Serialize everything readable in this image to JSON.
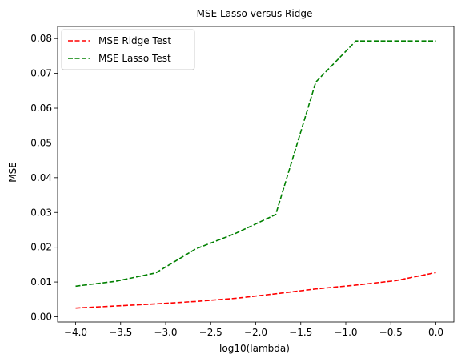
{
  "chart_data": {
    "type": "line",
    "title": "MSE Lasso versus Ridge",
    "xlabel": "log10(lambda)",
    "ylabel": "MSE",
    "xlim": [
      -4.2,
      0.2
    ],
    "ylim": [
      -0.0015,
      0.0835
    ],
    "xticks": [
      -4.0,
      -3.5,
      -3.0,
      -2.5,
      -2.0,
      -1.5,
      -1.0,
      -0.5,
      0.0
    ],
    "xtick_labels": [
      "−4.0",
      "−3.5",
      "−3.0",
      "−2.5",
      "−2.0",
      "−1.5",
      "−1.0",
      "−0.5",
      "0.0"
    ],
    "yticks": [
      0.0,
      0.01,
      0.02,
      0.03,
      0.04,
      0.05,
      0.06,
      0.07,
      0.08
    ],
    "ytick_labels": [
      "0.00",
      "0.01",
      "0.02",
      "0.03",
      "0.04",
      "0.05",
      "0.06",
      "0.07",
      "0.08"
    ],
    "legend_position": "top-left",
    "grid": false,
    "series": [
      {
        "name": "MSE Ridge Test",
        "color": "#ff0000",
        "dash": "dashed",
        "x": [
          -4.0,
          -3.556,
          -3.111,
          -2.667,
          -2.222,
          -1.778,
          -1.333,
          -0.889,
          -0.444,
          0.0
        ],
        "y": [
          0.0025,
          0.0031,
          0.0037,
          0.0044,
          0.0053,
          0.0066,
          0.008,
          0.0091,
          0.0104,
          0.0127
        ]
      },
      {
        "name": "MSE Lasso Test",
        "color": "#008000",
        "dash": "dashed",
        "x": [
          -4.0,
          -3.556,
          -3.111,
          -2.667,
          -2.222,
          -1.778,
          -1.333,
          -0.889,
          -0.444,
          0.0
        ],
        "y": [
          0.0088,
          0.0102,
          0.0126,
          0.0195,
          0.024,
          0.0294,
          0.0675,
          0.0793,
          0.0793,
          0.0793
        ]
      }
    ]
  }
}
